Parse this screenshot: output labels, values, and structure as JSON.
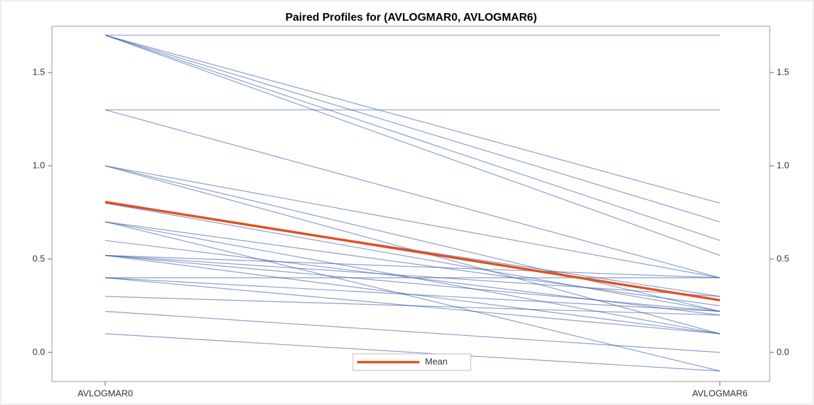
{
  "chart_data": {
    "type": "line",
    "title": "Paired Profiles for (AVLOGMAR0, AVLOGMAR6)",
    "categories": [
      "AVLOGMAR0",
      "AVLOGMAR6"
    ],
    "ylim": [
      -0.156,
      1.748
    ],
    "yticks": [
      {
        "value": 0,
        "label": "0.0"
      },
      0.5,
      {
        "value": 1,
        "label": "1.0"
      },
      1.5
    ],
    "legend": "bottom",
    "series": [
      {
        "color": "#3c5ea8",
        "values": [
          1.7,
          1.7
        ]
      },
      {
        "color": "#3c5ea8",
        "values": [
          1.7,
          0.8
        ]
      },
      {
        "color": "#3c5ea8",
        "values": [
          1.7,
          0.7
        ]
      },
      {
        "color": "#3c5ea8",
        "values": [
          1.7,
          0.6
        ]
      },
      {
        "color": "#3c5ea8",
        "values": [
          1.7,
          0.52
        ]
      },
      {
        "color": "#3c5ea8",
        "values": [
          1.3,
          1.3
        ]
      },
      {
        "color": "#3c5ea8",
        "values": [
          1.3,
          0.4
        ]
      },
      {
        "color": "#3c5ea8",
        "values": [
          1.0,
          0.4
        ]
      },
      {
        "color": "#3c5ea8",
        "values": [
          1.0,
          0.22
        ]
      },
      {
        "color": "#3c5ea8",
        "values": [
          1.0,
          0.1
        ]
      },
      {
        "color": "#3c5ea8",
        "values": [
          0.8,
          0.3
        ]
      },
      {
        "color": "#3c5ea8",
        "values": [
          0.8,
          0.22
        ]
      },
      {
        "color": "#3c5ea8",
        "values": [
          0.7,
          0.25
        ]
      },
      {
        "color": "#3c5ea8",
        "values": [
          0.7,
          -0.1
        ]
      },
      {
        "color": "#3c5ea8",
        "values": [
          0.7,
          0.1
        ]
      },
      {
        "color": "#3c5ea8",
        "values": [
          0.6,
          0.2
        ]
      },
      {
        "color": "#3c5ea8",
        "values": [
          0.52,
          0.4
        ]
      },
      {
        "color": "#3c5ea8",
        "values": [
          0.52,
          0.3
        ]
      },
      {
        "color": "#3c5ea8",
        "values": [
          0.52,
          0.1
        ]
      },
      {
        "color": "#3c5ea8",
        "values": [
          0.52,
          0.22
        ]
      },
      {
        "color": "#3c5ea8",
        "values": [
          0.4,
          0.4
        ]
      },
      {
        "color": "#3c5ea8",
        "values": [
          0.4,
          0.1
        ]
      },
      {
        "color": "#3c5ea8",
        "values": [
          0.4,
          0.22
        ]
      },
      {
        "color": "#3c5ea8",
        "values": [
          0.3,
          0.2
        ]
      },
      {
        "color": "#3c5ea8",
        "values": [
          0.22,
          0.0
        ]
      },
      {
        "color": "#3c5ea8",
        "values": [
          0.1,
          -0.1
        ]
      },
      {
        "name": "Mean",
        "color": "#e0521f",
        "values": [
          0.806,
          0.28
        ]
      }
    ]
  }
}
